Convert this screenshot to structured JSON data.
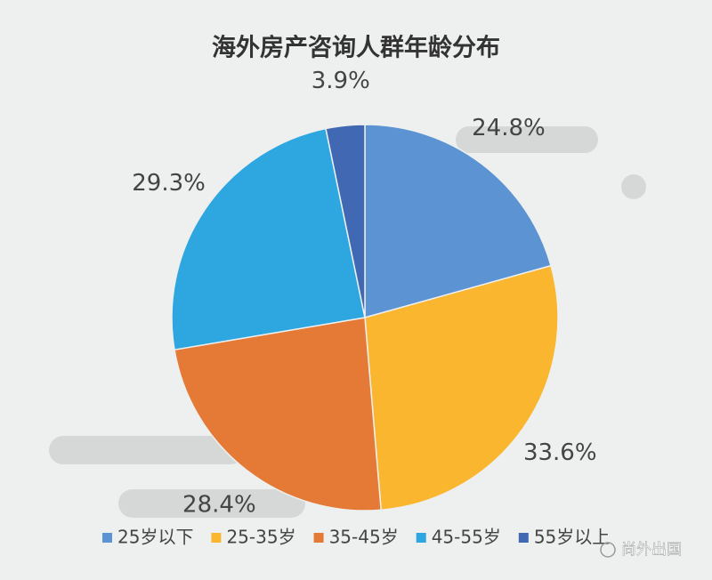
{
  "chart_data": {
    "type": "pie",
    "title": "海外房产咨询人群年龄分布",
    "categories": [
      "25岁以下",
      "25-35岁",
      "35-45岁",
      "45-55岁",
      "55岁以上"
    ],
    "values": [
      24.8,
      33.6,
      28.4,
      29.3,
      3.9
    ],
    "value_labels": [
      "24.8%",
      "33.6%",
      "28.4%",
      "29.3%",
      "3.9%"
    ],
    "colors": [
      "#5b93d3",
      "#f9b62e",
      "#e57a36",
      "#2ea6e0",
      "#4169b3"
    ],
    "legend": "bottom"
  },
  "watermark": "尚外出国"
}
